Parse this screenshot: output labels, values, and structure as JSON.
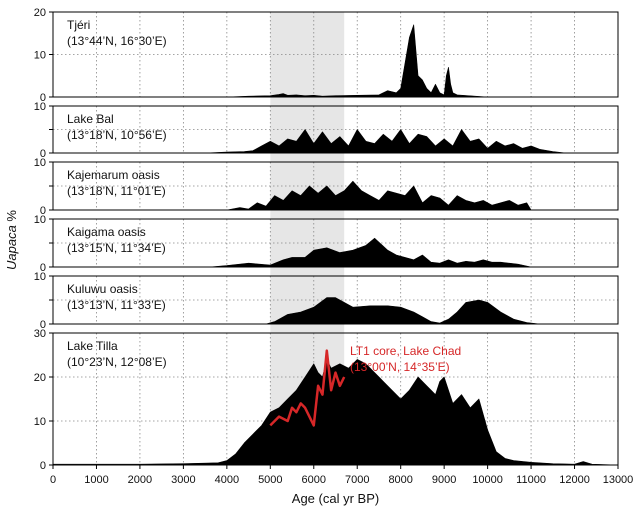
{
  "chart_data": {
    "type": "area",
    "xlabel": "Age (cal yr BP)",
    "ylabel_prefix": "Uapaca",
    "ylabel_suffix": " %",
    "xlim": [
      0,
      13000
    ],
    "xticks": [
      0,
      1000,
      2000,
      3000,
      4000,
      5000,
      6000,
      7000,
      8000,
      9000,
      10000,
      11000,
      12000,
      13000
    ],
    "grid": true,
    "colors": {
      "fill": "#000000",
      "highlight_band": "#e6e6e6",
      "overlay_line": "#d62728"
    },
    "highlight_band": {
      "x": [
        5000,
        6700
      ]
    },
    "panels": [
      {
        "name": "Tjéri",
        "coords": "(13°44’N, 16°30’E)",
        "ylim": [
          0,
          20
        ],
        "yticks": [
          0,
          10,
          20
        ],
        "x": [
          600,
          1000,
          2000,
          3000,
          3500,
          4000,
          4500,
          5000,
          5200,
          5300,
          5400,
          5600,
          5800,
          6000,
          6200,
          6500,
          7000,
          7500,
          7700,
          7900,
          8000,
          8100,
          8200,
          8300,
          8400,
          8500,
          8600,
          8700,
          8800,
          8900,
          9000,
          9050,
          9100,
          9150,
          9200,
          9300,
          10000
        ],
        "values": [
          0,
          0,
          0,
          0,
          0,
          0,
          0.2,
          0.3,
          0.6,
          0.8,
          0.4,
          0.5,
          0.3,
          0.4,
          0.2,
          0.3,
          0.4,
          0.5,
          1.5,
          1,
          2,
          8,
          14,
          17,
          5,
          4,
          2,
          1,
          3,
          1,
          0.5,
          5,
          7,
          3,
          1,
          0.5,
          0
        ]
      },
      {
        "name": "Lake Bal",
        "coords": "(13°18’N, 10°56’E)",
        "ylim": [
          0,
          10
        ],
        "yticks": [
          0,
          5,
          10
        ],
        "x": [
          1000,
          2000,
          3000,
          3500,
          4000,
          4400,
          4600,
          4800,
          5000,
          5200,
          5400,
          5600,
          5800,
          6000,
          6200,
          6400,
          6600,
          6800,
          7000,
          7200,
          7400,
          7600,
          7800,
          8000,
          8200,
          8400,
          8600,
          8800,
          9000,
          9200,
          9400,
          9600,
          9800,
          10000,
          10200,
          10400,
          10600,
          10800,
          11000,
          11200,
          11500,
          11800
        ],
        "values": [
          0,
          0,
          0,
          0,
          0.2,
          0.3,
          0.5,
          1.5,
          2.5,
          1.5,
          3,
          2.5,
          5,
          2,
          4.5,
          2,
          3.5,
          1.5,
          5,
          2.5,
          2,
          4,
          2.5,
          5,
          2,
          4,
          3.5,
          1.5,
          3,
          1.5,
          5,
          2.5,
          3,
          1,
          2.5,
          1.5,
          2,
          1,
          1.5,
          0.8,
          0.3,
          0
        ]
      },
      {
        "name": "Kajemarum oasis",
        "coords": "(13°18’N, 11°01’E)",
        "ylim": [
          0,
          10
        ],
        "yticks": [
          0,
          5,
          10
        ],
        "x": [
          1000,
          2000,
          3000,
          4000,
          4300,
          4500,
          4700,
          4900,
          5100,
          5300,
          5500,
          5700,
          5900,
          6100,
          6300,
          6500,
          6700,
          6900,
          7100,
          7300,
          7500,
          7700,
          7900,
          8100,
          8300,
          8500,
          8700,
          8900,
          9100,
          9300,
          9500,
          9700,
          9900,
          10100,
          10300,
          10500,
          10700,
          10900,
          11000
        ],
        "values": [
          0,
          0,
          0,
          0,
          0.5,
          0.2,
          1.5,
          0.8,
          3,
          2,
          4,
          3,
          5,
          3.5,
          5,
          3,
          4,
          6,
          4,
          3,
          2,
          4,
          3.5,
          3,
          5,
          1.5,
          3,
          2.5,
          1,
          3,
          2,
          1.5,
          2,
          1,
          1.5,
          2,
          1,
          1.5,
          0
        ]
      },
      {
        "name": "Kaigama oasis",
        "coords": "(13°15’N, 11°34’E)",
        "ylim": [
          0,
          10
        ],
        "yticks": [
          0,
          5,
          10
        ],
        "x": [
          3600,
          4000,
          4500,
          5000,
          5300,
          5500,
          5800,
          6000,
          6300,
          6600,
          6900,
          7200,
          7400,
          7700,
          7900,
          8100,
          8300,
          8500,
          8700,
          8900,
          9100,
          9300,
          9500,
          9700,
          9900,
          10100,
          10300,
          10500,
          10700,
          11000
        ],
        "values": [
          0,
          0.3,
          0.8,
          0.4,
          1.5,
          2,
          2,
          3.5,
          4,
          3,
          3.5,
          4.5,
          6,
          3.5,
          2.5,
          2,
          1.5,
          2.5,
          1,
          0.8,
          1.5,
          0.8,
          1.2,
          1,
          1.5,
          1,
          1,
          0.8,
          0.6,
          0
        ]
      },
      {
        "name": "Kuluwu oasis",
        "coords": "(13°13’N, 11°33’E)",
        "ylim": [
          0,
          10
        ],
        "yticks": [
          0,
          5,
          10
        ],
        "x": [
          4900,
          5100,
          5400,
          5700,
          6000,
          6300,
          6500,
          6700,
          6900,
          7300,
          7700,
          8000,
          8300,
          8500,
          8700,
          8900,
          9100,
          9300,
          9500,
          9800,
          10000,
          10300,
          10600,
          10900,
          11200
        ],
        "values": [
          0,
          0.5,
          2,
          2.5,
          3.5,
          5.5,
          5.5,
          4.5,
          3.5,
          3.8,
          3.8,
          3.5,
          2.5,
          1.5,
          0.5,
          0.2,
          1,
          2.5,
          4.5,
          5,
          4.5,
          2.5,
          1,
          0.3,
          0
        ]
      },
      {
        "name": "Lake Tilla",
        "coords": "(10°23’N, 12°08’E)",
        "ylim": [
          0,
          30
        ],
        "yticks": [
          0,
          10,
          20,
          30
        ],
        "x": [
          0,
          2000,
          3000,
          3800,
          4000,
          4200,
          4400,
          4600,
          4800,
          5000,
          5200,
          5400,
          5600,
          5800,
          6000,
          6100,
          6200,
          6300,
          6400,
          6600,
          6800,
          7000,
          7200,
          7400,
          7600,
          7800,
          8000,
          8200,
          8400,
          8600,
          8800,
          8900,
          9000,
          9200,
          9400,
          9600,
          9800,
          10000,
          10200,
          10400,
          10600,
          11000,
          11500,
          12000,
          12200,
          12400,
          13000
        ],
        "values": [
          0.2,
          0.2,
          0.3,
          0.5,
          1,
          2.5,
          5,
          7,
          9,
          12,
          13,
          15,
          17,
          20,
          23,
          21,
          20,
          24,
          22,
          23,
          22,
          24,
          23,
          21,
          19,
          17,
          15,
          17,
          20,
          18,
          16,
          19,
          20,
          14,
          16,
          13,
          15,
          8,
          3,
          1.5,
          1,
          0.6,
          0.3,
          0.2,
          0.8,
          0.2,
          0
        ]
      }
    ],
    "overlay": {
      "panel": 5,
      "name": "LT1 core, Lake Chad",
      "coords": "(13°00’N, 14°35’E)",
      "x": [
        5000,
        5200,
        5400,
        5500,
        5600,
        5700,
        5800,
        6000,
        6100,
        6200,
        6300,
        6400,
        6500,
        6600,
        6700
      ],
      "values": [
        9,
        11,
        10,
        13,
        12,
        14,
        13,
        9,
        18,
        16,
        26,
        17,
        21,
        18,
        20
      ]
    }
  }
}
